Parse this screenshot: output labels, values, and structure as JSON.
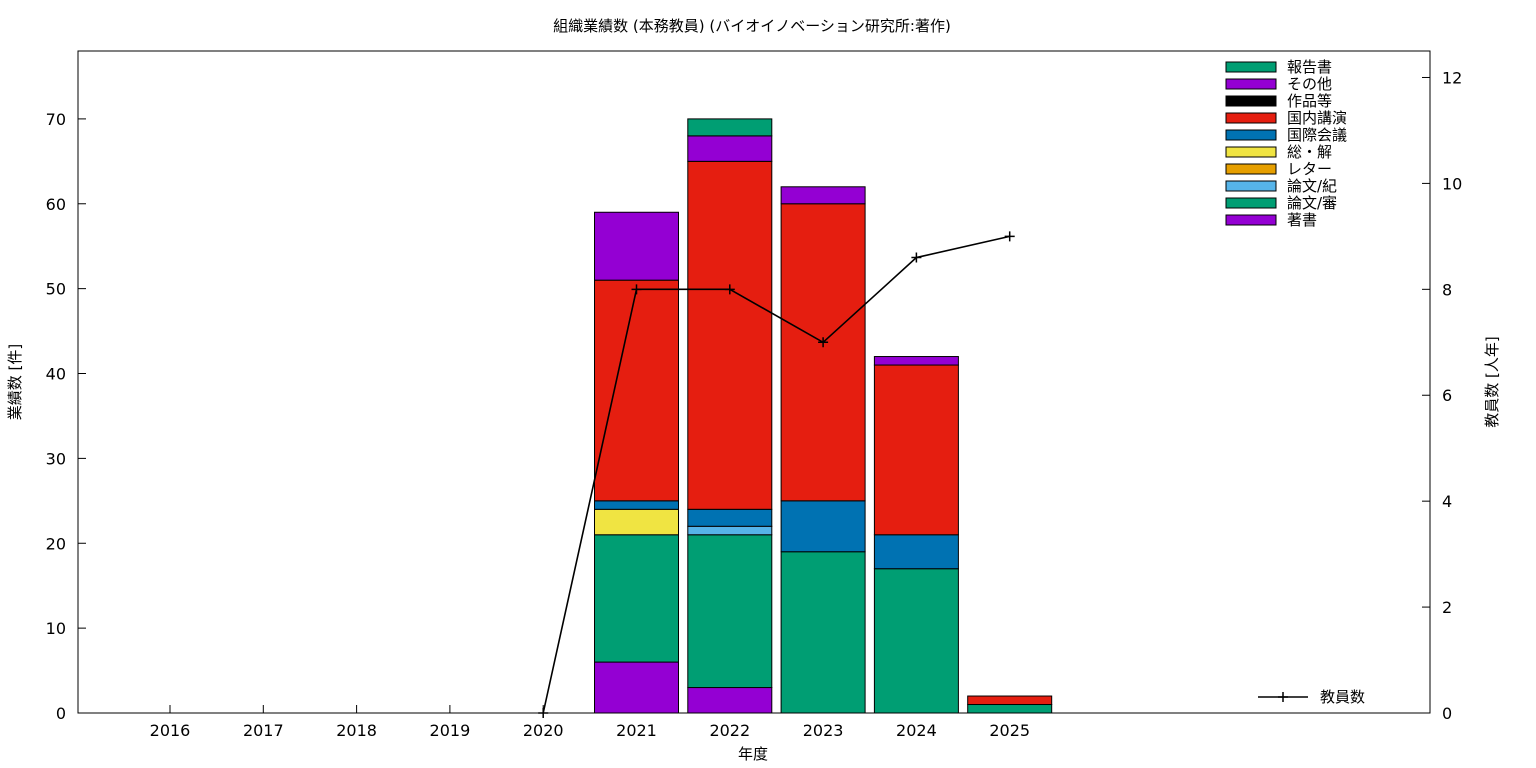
{
  "chart_data": {
    "type": "bar",
    "stacked": true,
    "title": "組織業績数 (本務教員) (バイオイノベーション研究所:著作)",
    "xlabel": "年度",
    "ylabel": "業績数 [件]",
    "y2label": "教員数 [人年]",
    "categories": [
      "2016",
      "2017",
      "2018",
      "2019",
      "2020",
      "2021",
      "2022",
      "2023",
      "2024",
      "2025"
    ],
    "ylim": [
      0,
      78
    ],
    "y_ticks": [
      "0",
      "10",
      "20",
      "30",
      "40",
      "50",
      "60",
      "70"
    ],
    "y2lim": [
      0,
      12.5
    ],
    "y2_ticks": [
      "0",
      "2",
      "4",
      "6",
      "8",
      "10",
      "12"
    ],
    "grid": false,
    "legend_position": "top-right",
    "series": [
      {
        "name": "著書",
        "color": "#9400d3",
        "values": [
          0,
          0,
          0,
          0,
          0,
          6,
          3,
          0,
          0,
          0
        ]
      },
      {
        "name": "論文/審",
        "color": "#009e73",
        "values": [
          0,
          0,
          0,
          0,
          0,
          15,
          18,
          19,
          17,
          1
        ]
      },
      {
        "name": "論文/紀",
        "color": "#56b4e9",
        "values": [
          0,
          0,
          0,
          0,
          0,
          0,
          1,
          0,
          0,
          0
        ]
      },
      {
        "name": "レター",
        "color": "#e69f00",
        "values": [
          0,
          0,
          0,
          0,
          0,
          0,
          0,
          0,
          0,
          0
        ]
      },
      {
        "name": "総・解",
        "color": "#f0e442",
        "values": [
          0,
          0,
          0,
          0,
          0,
          3,
          0,
          0,
          0,
          0
        ]
      },
      {
        "name": "国際会議",
        "color": "#0072b2",
        "values": [
          0,
          0,
          0,
          0,
          0,
          1,
          2,
          6,
          4,
          0
        ]
      },
      {
        "name": "国内講演",
        "color": "#e51e10",
        "values": [
          0,
          0,
          0,
          0,
          0,
          26,
          41,
          35,
          20,
          1
        ]
      },
      {
        "name": "作品等",
        "color": "#000000",
        "values": [
          0,
          0,
          0,
          0,
          0,
          0,
          0,
          0,
          0,
          0
        ]
      },
      {
        "name": "その他",
        "color": "#9400d3",
        "values": [
          0,
          0,
          0,
          0,
          0,
          8,
          3,
          2,
          1,
          0
        ]
      },
      {
        "name": "報告書",
        "color": "#009e73",
        "values": [
          0,
          0,
          0,
          0,
          0,
          0,
          2,
          0,
          0,
          0
        ]
      }
    ],
    "line_series": {
      "name": "教員数",
      "color": "#000000",
      "axis": "y2",
      "x": [
        "2020",
        "2021",
        "2022",
        "2023",
        "2024",
        "2025"
      ],
      "values": [
        0,
        8,
        8,
        7,
        8.6,
        9
      ]
    }
  }
}
